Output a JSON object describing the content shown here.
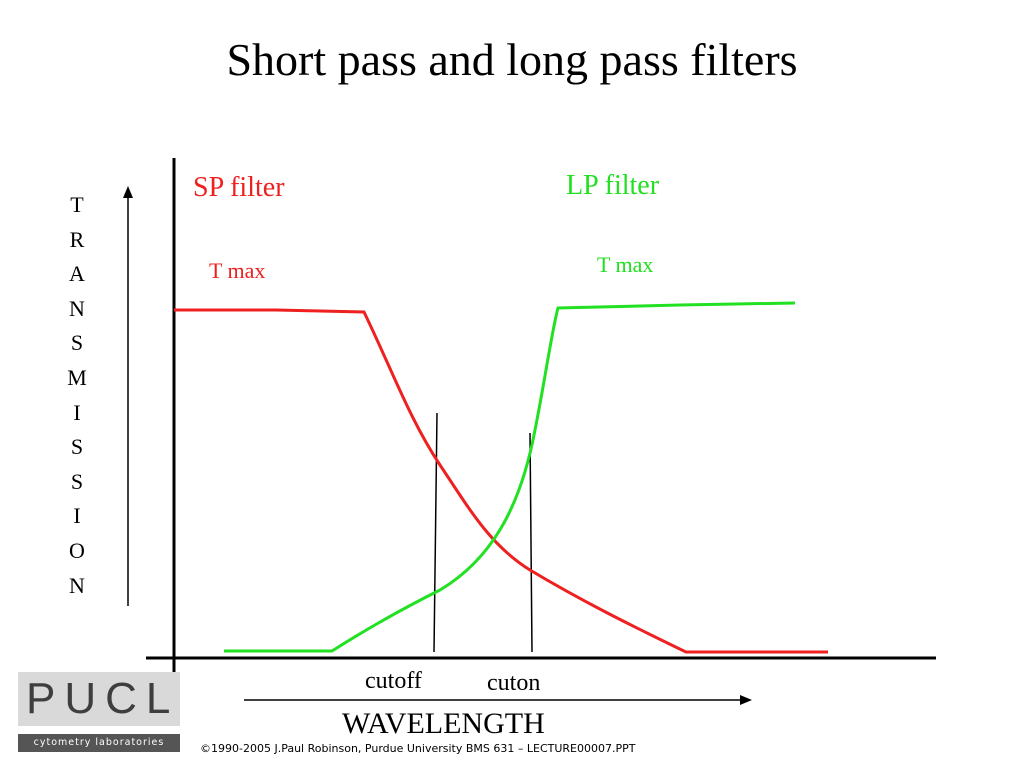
{
  "title": "Short pass and long pass filters",
  "y_axis_letters": [
    "T",
    "R",
    "A",
    "N",
    "S",
    "M",
    "I",
    "S",
    "S",
    "I",
    "O",
    "N"
  ],
  "x_axis_label": "WAVELENGTH",
  "sp_filter": {
    "label": "SP filter",
    "tmax_label": "T max",
    "color": "#ee2020"
  },
  "lp_filter": {
    "label": "LP filter",
    "tmax_label": "T max",
    "color": "#22e022"
  },
  "markers": {
    "cutoff": "cutoff",
    "cuton": "cuton"
  },
  "footer": "©1990-2005 J.Paul Robinson, Purdue University  BMS 631 – LECTURE00007.PPT",
  "logo": {
    "word": "PUCL",
    "subtitle": "cytometry laboratories"
  },
  "colors": {
    "axis": "#000000",
    "background": "#ffffff"
  }
}
